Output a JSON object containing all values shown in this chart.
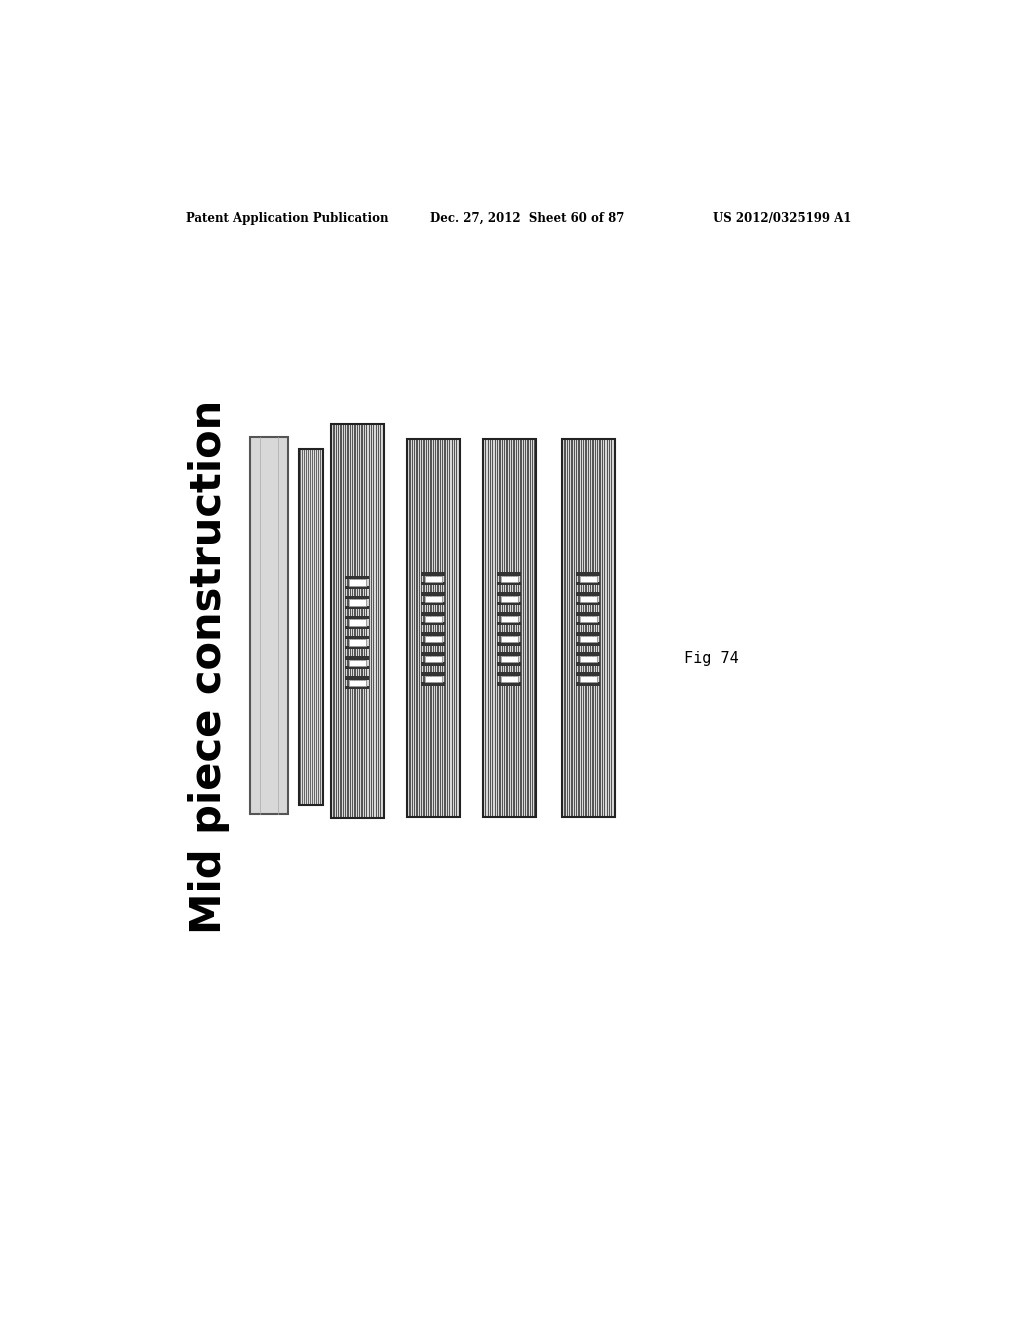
{
  "background_color": "#ffffff",
  "header_left": "Patent Application Publication",
  "header_center": "Dec. 27, 2012  Sheet 60 of 87",
  "header_right": "US 2012/0325199 A1",
  "fig_label": "Fig 74",
  "label_text": "Mid piece construction",
  "panel_bg": "#c8c8c8",
  "stripe_dark": "#555555",
  "stripe_light": "#e0e0e0",
  "border_color": "#222222",
  "block_white": "#ffffff",
  "block_dark": "#333333",
  "block_gray": "#aaaaaa"
}
